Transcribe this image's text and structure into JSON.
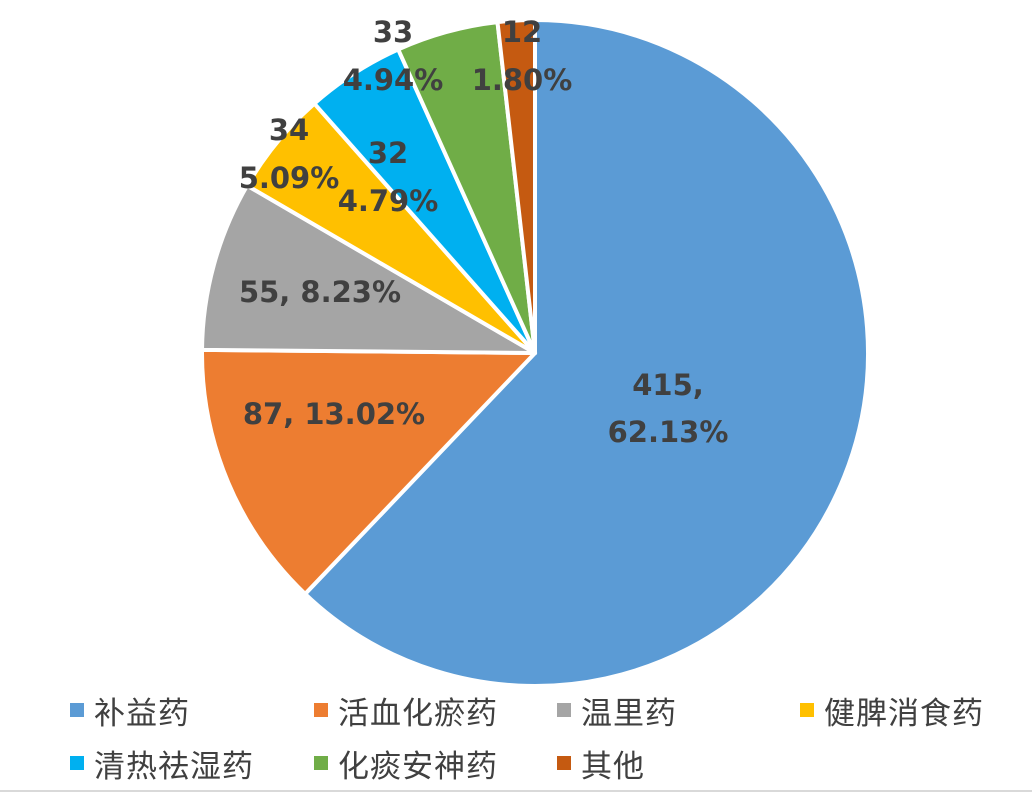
{
  "chart_data": {
    "type": "pie",
    "title": "",
    "categories": [
      "补益药",
      "活血化瘀药",
      "温里药",
      "健脾消食药",
      "清热祛湿药",
      "化痰安神药",
      "其他"
    ],
    "values": [
      415,
      87,
      55,
      34,
      32,
      33,
      12
    ],
    "percentages": [
      "62.13%",
      "13.02%",
      "8.23%",
      "5.09%",
      "4.79%",
      "4.94%",
      "1.80%"
    ],
    "colors": [
      "#5B9BD5",
      "#ED7D31",
      "#A5A5A5",
      "#FFC000",
      "#00B0F0",
      "#70AD47",
      "#C55A11"
    ],
    "slice_order": [
      "补益药",
      "活血化瘀药",
      "温里药",
      "健脾消食药",
      "清热祛湿药",
      "化痰安神药",
      "其他"
    ],
    "data_labels": [
      {
        "lines": [
          "415,",
          "62.13%"
        ]
      },
      {
        "lines": [
          "87, 13.02%"
        ]
      },
      {
        "lines": [
          "55, 8.23%"
        ]
      },
      {
        "lines": [
          "34",
          "5.09%"
        ]
      },
      {
        "lines": [
          "32",
          "4.79%"
        ]
      },
      {
        "lines": [
          "33",
          "4.94%"
        ]
      },
      {
        "lines": [
          "12",
          "1.80%"
        ]
      }
    ],
    "legend_position": "bottom"
  }
}
